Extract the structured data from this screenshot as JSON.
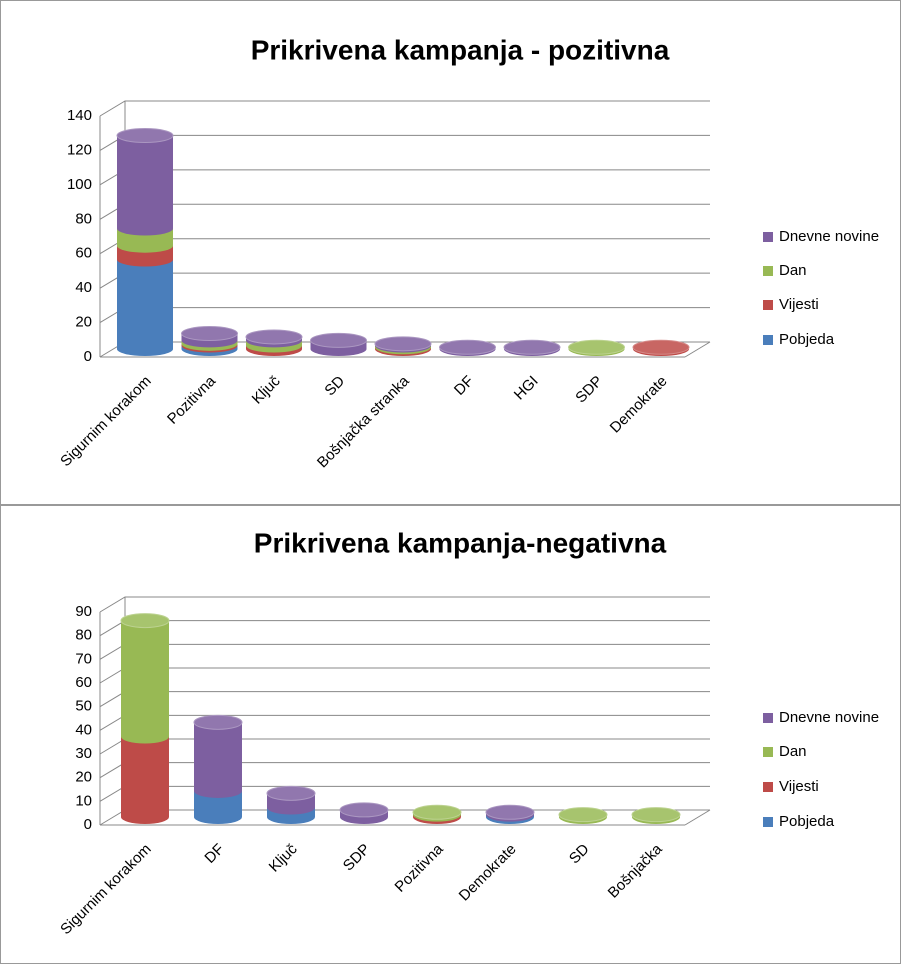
{
  "chart_data": [
    {
      "type": "bar3d",
      "title": "Prikrivena kampanja - pozitivna",
      "categories": [
        "Sigurnim korakom",
        "Pozitivna",
        "Ključ",
        "SD",
        "Bošnjačka stranka",
        "DF",
        "HGI",
        "SDP",
        "Demokrate"
      ],
      "series": [
        {
          "name": "Pobjeda",
          "color": "#4a7ebb",
          "values": [
            52,
            2,
            0,
            0,
            0,
            0,
            0,
            0,
            0
          ]
        },
        {
          "name": "Vijesti",
          "color": "#be4b48",
          "values": [
            8,
            1,
            2,
            0,
            1,
            0,
            0,
            0,
            1
          ]
        },
        {
          "name": "Dan",
          "color": "#98b954",
          "values": [
            10,
            2,
            3,
            0,
            1,
            0,
            0,
            1,
            0
          ]
        },
        {
          "name": "Dnevne novine",
          "color": "#7d5fa0",
          "values": [
            54,
            4,
            2,
            5,
            1,
            1,
            1,
            0,
            0
          ]
        }
      ],
      "ylim": [
        0,
        140
      ],
      "yticks": [
        0,
        20,
        40,
        60,
        80,
        100,
        120,
        140
      ],
      "grid": true,
      "legend": "right"
    },
    {
      "type": "bar3d",
      "title": "Prikrivena kampanja-negativna",
      "categories": [
        "Sigurnim korakom",
        "DF",
        "Ključ",
        "SDP",
        "Pozitivna",
        "Demokrate",
        "SD",
        "Bošnjačka"
      ],
      "series": [
        {
          "name": "Pobjeda",
          "color": "#4a7ebb",
          "values": [
            0,
            11,
            4,
            0,
            0,
            1,
            0,
            0
          ]
        },
        {
          "name": "Vijesti",
          "color": "#be4b48",
          "values": [
            34,
            0,
            0,
            0,
            1,
            0,
            0,
            0
          ]
        },
        {
          "name": "Dan",
          "color": "#98b954",
          "values": [
            49,
            0,
            0,
            0,
            1,
            0,
            1,
            1
          ]
        },
        {
          "name": "Dnevne novine",
          "color": "#7d5fa0",
          "values": [
            0,
            29,
            6,
            3,
            0,
            1,
            0,
            0
          ]
        }
      ],
      "ylim": [
        0,
        90
      ],
      "yticks": [
        0,
        10,
        20,
        30,
        40,
        50,
        60,
        70,
        80,
        90
      ],
      "grid": true,
      "legend": "right"
    }
  ]
}
